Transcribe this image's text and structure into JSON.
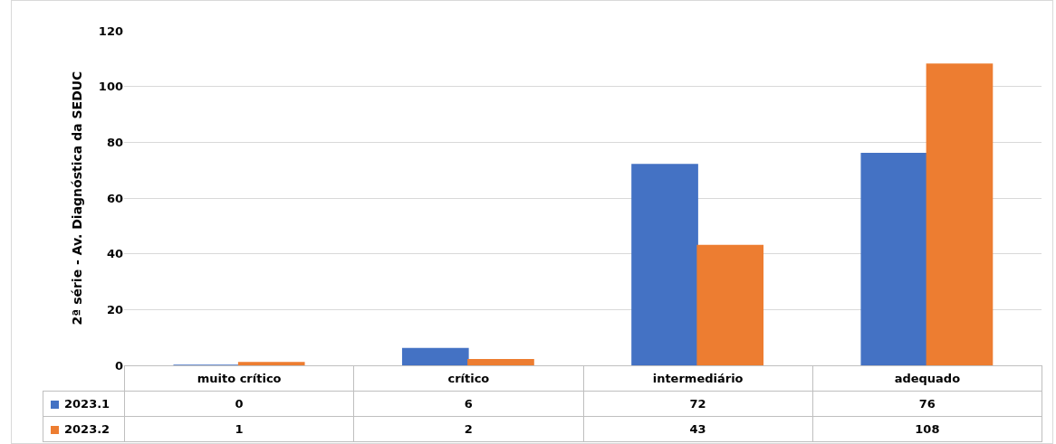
{
  "chart_data": {
    "type": "bar",
    "ylabel": "2ª série - Av. Diagnóstica da SEDUC",
    "categories": [
      "muito crítico",
      "crítico",
      "intermediário",
      "adequado"
    ],
    "series": [
      {
        "name": "2023.1",
        "color": "#4472c4",
        "values": [
          0,
          6,
          72,
          76
        ]
      },
      {
        "name": "2023.2",
        "color": "#ed7d31",
        "values": [
          1,
          2,
          43,
          108
        ]
      }
    ],
    "ylim": [
      0,
      120
    ],
    "yticks": [
      0,
      20,
      40,
      60,
      80,
      100,
      120
    ],
    "grid": "y",
    "data_labels": true,
    "legend": "bottom"
  }
}
